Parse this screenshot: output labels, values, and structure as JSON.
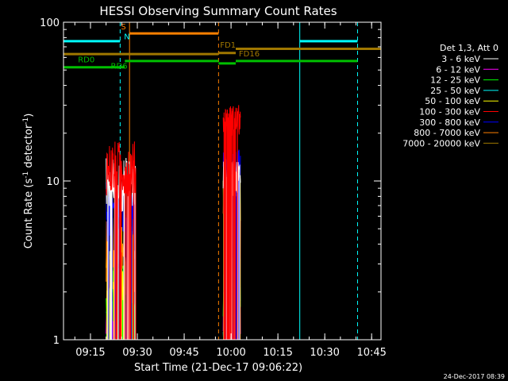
{
  "chart_data": {
    "type": "line",
    "title": "HESSI Observing Summary Count Rates",
    "xlabel": "Start Time (21-Dec-17 09:06:22)",
    "ylabel": "Count Rate (s⁻¹ detector⁻¹)",
    "ylabel_main": "Count Rate (s",
    "ylabel_sup1": "-1",
    "ylabel_mid": " detector",
    "ylabel_sup2": "-1",
    "ylabel_end": ")",
    "yscale": "log",
    "ylim": [
      1,
      100
    ],
    "xlim": [
      "09:06:22",
      "10:48:00"
    ],
    "x_ticks": [
      "09:15",
      "09:30",
      "09:45",
      "10:00",
      "10:15",
      "10:30",
      "10:45"
    ],
    "y_ticks": [
      "1",
      "10",
      "100"
    ],
    "grid": false,
    "legend_position": "right",
    "legend_header": "Det 1,3, Att 0",
    "series": [
      {
        "name": "3 - 6 keV",
        "color": "#ffffff",
        "segments": [
          {
            "x_range": [
              "09:20:00",
              "09:29:30"
            ],
            "level": 9.5,
            "spread": 0.35
          },
          {
            "x_range": [
              "09:57:30",
              "10:03:00"
            ],
            "level": 10.5,
            "spread": 0.25
          }
        ]
      },
      {
        "name": "6 - 12 keV",
        "color": "#ff00ff",
        "segments": [
          {
            "x_range": [
              "09:20:00",
              "09:29:30"
            ],
            "level": 1.4,
            "spread": 0.6
          },
          {
            "x_range": [
              "09:57:30",
              "10:03:00"
            ],
            "level": 1.4,
            "spread": 0.5
          }
        ]
      },
      {
        "name": "12 - 25 keV",
        "color": "#00ff00",
        "segments": [
          {
            "x_range": [
              "09:20:00",
              "09:29:30"
            ],
            "level": 1.6,
            "spread": 0.6
          },
          {
            "x_range": [
              "09:57:30",
              "10:03:00"
            ],
            "level": 2.2,
            "spread": 0.5
          }
        ]
      },
      {
        "name": "25 - 50 keV",
        "color": "#00ffff",
        "segments": [
          {
            "x_range": [
              "09:20:00",
              "09:29:30"
            ],
            "level": 1.3,
            "spread": 0.4
          },
          {
            "x_range": [
              "09:57:30",
              "10:03:00"
            ],
            "level": 1.5,
            "spread": 0.5
          }
        ]
      },
      {
        "name": "50 - 100 keV",
        "color": "#ffff00",
        "segments": [
          {
            "x_range": [
              "09:20:00",
              "09:29:30"
            ],
            "level": 3.0,
            "spread": 0.5
          },
          {
            "x_range": [
              "09:57:30",
              "10:03:00"
            ],
            "level": 7.5,
            "spread": 0.3
          }
        ]
      },
      {
        "name": "100 - 300 keV",
        "color": "#ff0000",
        "segments": [
          {
            "x_range": [
              "09:20:00",
              "09:29:30"
            ],
            "level": 12.0,
            "spread": 0.35
          },
          {
            "x_range": [
              "09:57:30",
              "10:03:00"
            ],
            "level": 24.0,
            "spread": 0.2
          }
        ]
      },
      {
        "name": "300 - 800 keV",
        "color": "#0000ff",
        "segments": [
          {
            "x_range": [
              "09:20:00",
              "09:29:30"
            ],
            "level": 6.5,
            "spread": 0.4
          },
          {
            "x_range": [
              "09:57:30",
              "10:03:00"
            ],
            "level": 12.0,
            "spread": 0.25
          }
        ]
      },
      {
        "name": "800 - 7000 keV",
        "color": "#ff8000",
        "segments": [
          {
            "x_range": [
              "09:20:00",
              "09:29:30"
            ],
            "level": 3.5,
            "spread": 0.5
          },
          {
            "x_range": [
              "09:57:30",
              "10:03:00"
            ],
            "level": 8.0,
            "spread": 0.35
          }
        ]
      },
      {
        "name": "7000 - 20000 keV",
        "color": "#a07800",
        "segments": []
      }
    ],
    "status_flags": [
      {
        "name": "orange-flag",
        "color": "#ff8000",
        "level": 85,
        "x_range": [
          "09:27:30",
          "09:56:00"
        ]
      },
      {
        "name": "cyan-flag",
        "color": "#00ffff",
        "level": 76,
        "segments": [
          [
            "09:06:22",
            "09:24:30"
          ],
          [
            "10:22:00",
            "10:40:30"
          ]
        ]
      },
      {
        "name": "olive-flag",
        "color": "#a07800",
        "level": 63,
        "segments": [
          [
            "09:06:22",
            "09:56:00"
          ],
          [
            "09:56:00",
            "10:01:30"
          ],
          [
            "10:01:30",
            "10:48:00"
          ]
        ],
        "levels": [
          63,
          64,
          68
        ]
      },
      {
        "name": "green-flag",
        "color": "#00c000",
        "segments": [
          [
            "09:06:22",
            "09:26:00"
          ],
          [
            "09:26:00",
            "09:56:00"
          ],
          [
            "09:56:00",
            "10:01:30"
          ],
          [
            "10:01:30",
            "10:40:30"
          ]
        ],
        "levels": [
          52,
          57,
          55,
          57
        ]
      }
    ],
    "markers": [
      {
        "time": "09:24:30",
        "color": "#00ffff",
        "style": "dashed"
      },
      {
        "time": "09:27:30",
        "color": "#ff8000",
        "style": "solid"
      },
      {
        "time": "09:56:00",
        "color": "#ff8000",
        "style": "dashed"
      },
      {
        "time": "10:22:00",
        "color": "#00ffff",
        "style": "solid"
      },
      {
        "time": "10:40:30",
        "color": "#00ffff",
        "style": "dashed"
      }
    ],
    "annotations": [
      {
        "text": "S",
        "color": "#ff8000",
        "time": "09:24:45",
        "value": 90
      },
      {
        "text": "N",
        "color": "#00ffff",
        "time": "09:25:45",
        "value": 78
      },
      {
        "text": "FD1",
        "color": "#a07800",
        "time": "09:56:30",
        "value": 69
      },
      {
        "text": "FD16",
        "color": "#a07800",
        "time": "10:02:30",
        "value": 61
      },
      {
        "text": "RD0",
        "color": "#00c000",
        "time": "09:11:00",
        "value": 56
      },
      {
        "text": "RD6",
        "color": "#00c000",
        "time": "09:21:30",
        "value": 51
      }
    ]
  },
  "footer": {
    "timestamp": "24-Dec-2017 08:39"
  }
}
